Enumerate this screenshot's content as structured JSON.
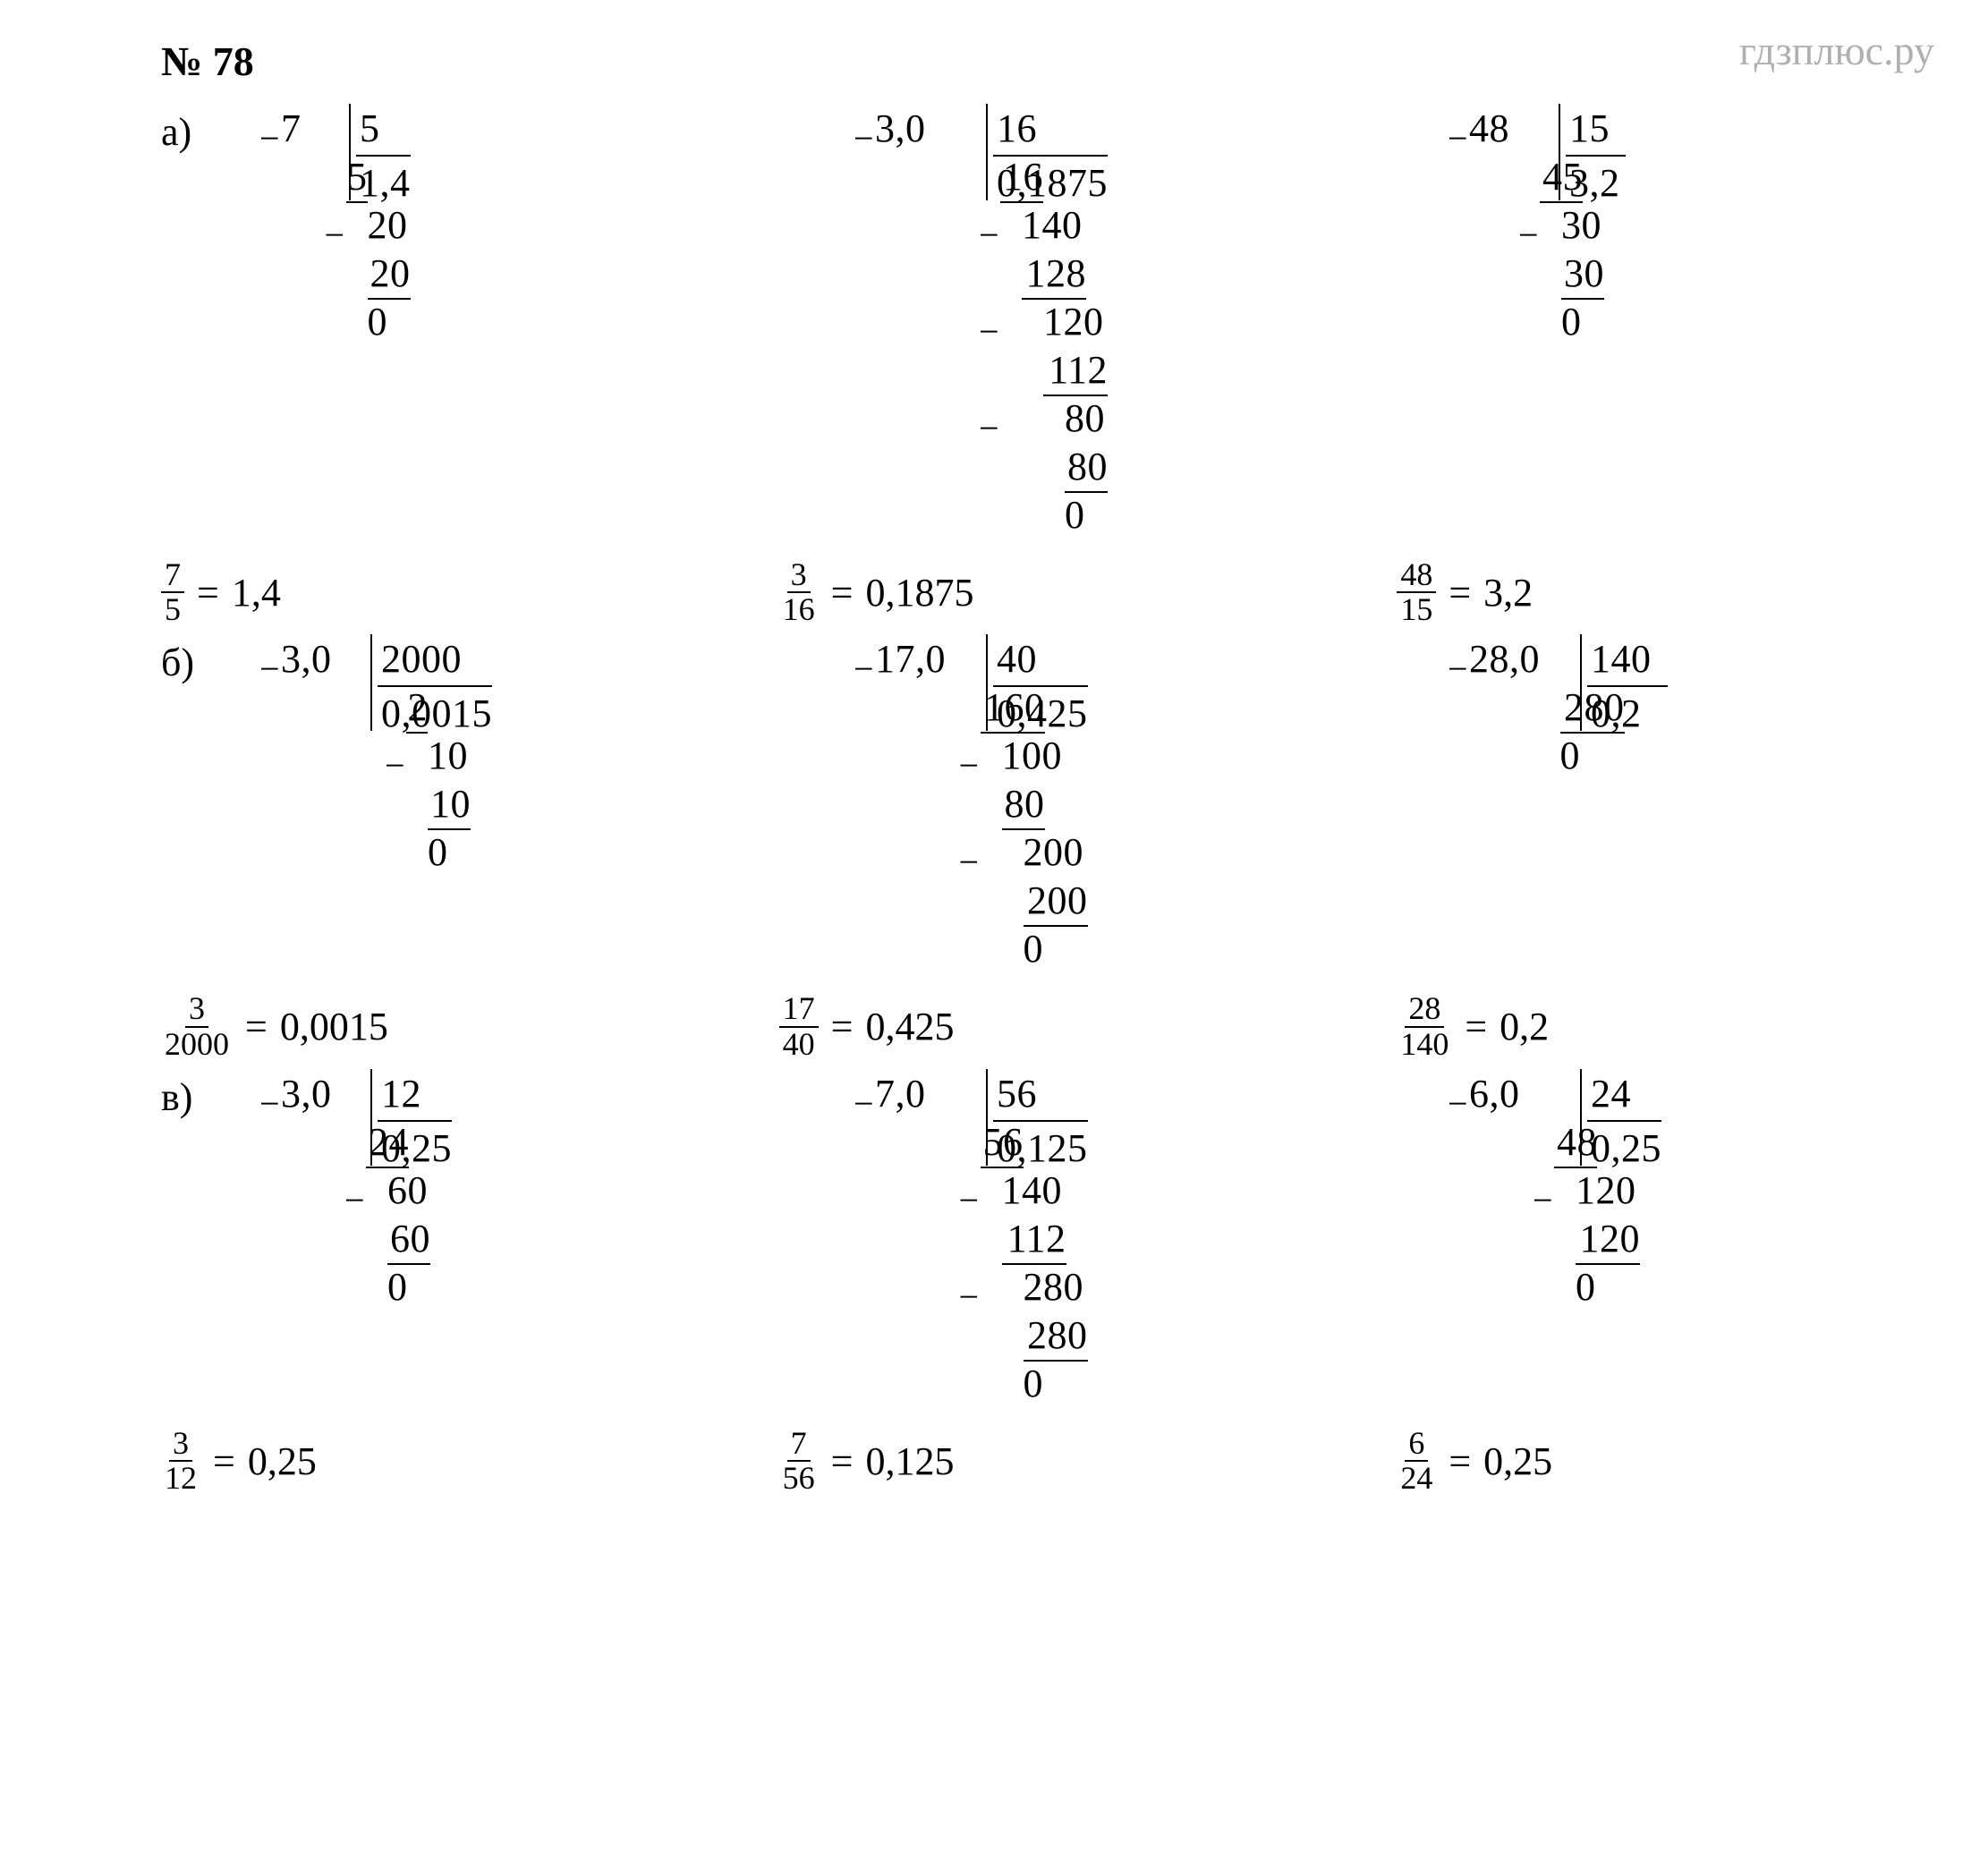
{
  "meta": {
    "watermark": "гдзплюс.ру",
    "problem_number": "№ 78",
    "text_color": "#000000",
    "watermark_color": "#b0b0b0",
    "background_color": "#ffffff",
    "font_family": "Times New Roman",
    "digit_width_ch": 1
  },
  "sections": [
    {
      "label": "а)",
      "columns": [
        {
          "dividend": "7",
          "divisor": "5",
          "quotient": "1,4",
          "left_width": 3,
          "steps": [
            {
              "minus": true,
              "value": "7",
              "pad": 0,
              "divisor_row": true
            },
            {
              "value": "5",
              "pad": 0,
              "underline": true,
              "ul_width": 1,
              "quot_row": true
            },
            {
              "minus": true,
              "value": "20",
              "pad": 1
            },
            {
              "value": "20",
              "pad": 1,
              "underline": true,
              "ul_width": 2
            },
            {
              "value": "0",
              "pad": 1
            }
          ],
          "answer": {
            "num": "7",
            "den": "5",
            "eq": "1,4"
          }
        },
        {
          "dividend": "3,0",
          "divisor": "16",
          "quotient": "0,1875",
          "left_width": 5,
          "steps": [
            {
              "minus": true,
              "value": "3,0",
              "pad": 0,
              "divisor_row": true
            },
            {
              "value": "16",
              "pad": 0,
              "underline": true,
              "ul_width": 2,
              "quot_row": true
            },
            {
              "minus": true,
              "value": "140",
              "pad": 1
            },
            {
              "value": "128",
              "pad": 1,
              "underline": true,
              "ul_width": 3
            },
            {
              "minus": true,
              "value": "120",
              "pad": 2
            },
            {
              "value": "112",
              "pad": 2,
              "underline": true,
              "ul_width": 3
            },
            {
              "minus": true,
              "value": "80",
              "pad": 3
            },
            {
              "value": "80",
              "pad": 3,
              "underline": true,
              "ul_width": 2
            },
            {
              "value": "0",
              "pad": 3
            }
          ],
          "answer": {
            "num": "3",
            "den": "16",
            "eq": "0,1875"
          }
        },
        {
          "dividend": "48",
          "divisor": "15",
          "quotient": "3,2",
          "left_width": 4,
          "steps": [
            {
              "minus": true,
              "value": "48",
              "pad": 0,
              "divisor_row": true
            },
            {
              "value": "45",
              "pad": 0,
              "underline": true,
              "ul_width": 2,
              "quot_row": true
            },
            {
              "minus": true,
              "value": "30",
              "pad": 1
            },
            {
              "value": "30",
              "pad": 1,
              "underline": true,
              "ul_width": 2
            },
            {
              "value": "0",
              "pad": 1
            }
          ],
          "answer": {
            "num": "48",
            "den": "15",
            "eq": "3,2"
          }
        }
      ]
    },
    {
      "label": "б)",
      "columns": [
        {
          "dividend": "3,0",
          "divisor": "2000",
          "quotient": "0,0015",
          "left_width": 4,
          "steps": [
            {
              "minus": true,
              "value": "3,0",
              "pad": 0,
              "divisor_row": true
            },
            {
              "value": "2",
              "pad": 0,
              "underline": true,
              "ul_width": 1,
              "quot_row": true
            },
            {
              "minus": true,
              "value": "10",
              "pad": 1
            },
            {
              "value": "10",
              "pad": 1,
              "underline": true,
              "ul_width": 2
            },
            {
              "value": "0",
              "pad": 1
            }
          ],
          "answer": {
            "num": "3",
            "den": "2000",
            "eq": "0,0015"
          }
        },
        {
          "dividend": "17,0",
          "divisor": "40",
          "quotient": "0,425",
          "left_width": 5,
          "steps": [
            {
              "minus": true,
              "value": "17,0",
              "pad": 0,
              "divisor_row": true
            },
            {
              "value": "160",
              "pad": 0,
              "underline": true,
              "ul_width": 3,
              "quot_row": true
            },
            {
              "minus": true,
              "value": "100",
              "pad": 1
            },
            {
              "value": "80",
              "pad": 1,
              "underline": true,
              "ul_width": 2
            },
            {
              "minus": true,
              "value": "200",
              "pad": 2
            },
            {
              "value": "200",
              "pad": 2,
              "underline": true,
              "ul_width": 3
            },
            {
              "value": "0",
              "pad": 2
            }
          ],
          "answer": {
            "num": "17",
            "den": "40",
            "eq": "0,425"
          }
        },
        {
          "dividend": "28,0",
          "divisor": "140",
          "quotient": "0,2",
          "left_width": 5,
          "steps": [
            {
              "minus": true,
              "value": "28,0",
              "pad": 0,
              "divisor_row": true
            },
            {
              "value": "280",
              "pad": 0,
              "underline": true,
              "ul_width": 3,
              "quot_row": true
            },
            {
              "value": "0",
              "pad": 0
            }
          ],
          "answer": {
            "num": "28",
            "den": "140",
            "eq": "0,2"
          }
        }
      ]
    },
    {
      "label": "в)",
      "columns": [
        {
          "dividend": "3,0",
          "divisor": "12",
          "quotient": "0,25",
          "left_width": 4,
          "steps": [
            {
              "minus": true,
              "value": "3,0",
              "pad": 0,
              "divisor_row": true
            },
            {
              "value": "24",
              "pad": 0,
              "underline": true,
              "ul_width": 2,
              "quot_row": true
            },
            {
              "minus": true,
              "value": "60",
              "pad": 1
            },
            {
              "value": "60",
              "pad": 1,
              "underline": true,
              "ul_width": 2
            },
            {
              "value": "0",
              "pad": 1
            }
          ],
          "answer": {
            "num": "3",
            "den": "12",
            "eq": "0,25"
          }
        },
        {
          "dividend": "7,0",
          "divisor": "56",
          "quotient": "0,125",
          "left_width": 5,
          "steps": [
            {
              "minus": true,
              "value": "7,0",
              "pad": 0,
              "divisor_row": true
            },
            {
              "value": "56",
              "pad": 0,
              "underline": true,
              "ul_width": 2,
              "quot_row": true
            },
            {
              "minus": true,
              "value": "140",
              "pad": 1
            },
            {
              "value": "112",
              "pad": 1,
              "underline": true,
              "ul_width": 3
            },
            {
              "minus": true,
              "value": "280",
              "pad": 2
            },
            {
              "value": "280",
              "pad": 2,
              "underline": true,
              "ul_width": 3
            },
            {
              "value": "0",
              "pad": 2
            }
          ],
          "answer": {
            "num": "7",
            "den": "56",
            "eq": "0,125"
          }
        },
        {
          "dividend": "6,0",
          "divisor": "24",
          "quotient": "0,25",
          "left_width": 5,
          "steps": [
            {
              "minus": true,
              "value": "6,0",
              "pad": 0,
              "divisor_row": true
            },
            {
              "value": "48",
              "pad": 0,
              "underline": true,
              "ul_width": 2,
              "quot_row": true
            },
            {
              "minus": true,
              "value": "120",
              "pad": 1
            },
            {
              "value": "120",
              "pad": 1,
              "underline": true,
              "ul_width": 3
            },
            {
              "value": "0",
              "pad": 1
            }
          ],
          "answer": {
            "num": "6",
            "den": "24",
            "eq": "0,25"
          }
        }
      ]
    }
  ]
}
